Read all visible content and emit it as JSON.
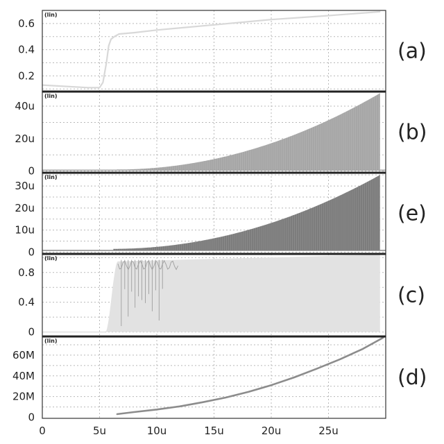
{
  "chart_data": [
    {
      "type": "line",
      "panel_label": "(a)",
      "scale_tag": "(lin)",
      "x": [
        0,
        2,
        4,
        5,
        5.3,
        5.6,
        5.8,
        6.0,
        6.3,
        6.7,
        8,
        10,
        15,
        20,
        25,
        29.5
      ],
      "values": [
        0.13,
        0.12,
        0.11,
        0.11,
        0.15,
        0.3,
        0.43,
        0.48,
        0.5,
        0.52,
        0.53,
        0.55,
        0.59,
        0.63,
        0.66,
        0.69
      ],
      "color": "#d8d8d8",
      "xlim": [
        0,
        30
      ],
      "ylim": [
        0.08,
        0.7
      ],
      "yticks": [
        0.2,
        0.4,
        0.6
      ],
      "ytick_labels": [
        "0.2",
        "0.4",
        "0.6"
      ],
      "grid": true
    },
    {
      "type": "area",
      "panel_label": "(b)",
      "scale_tag": "(lin)",
      "envelope": {
        "start": 6.5,
        "end": 29.5,
        "start_value": 1,
        "end_value": 48,
        "power": 2,
        "offset": 0.6
      },
      "baseline": 0.6,
      "color": "#a6a6a6",
      "xlim": [
        0,
        30
      ],
      "ylim": [
        -1,
        49
      ],
      "yticks": [
        0,
        20,
        40
      ],
      "ytick_labels": [
        "0",
        "20u",
        "40u"
      ],
      "grid": true
    },
    {
      "type": "area",
      "panel_label": "(e)",
      "scale_tag": "(lin)",
      "envelope": {
        "start": 6.2,
        "end": 29.5,
        "start_value": 1.5,
        "end_value": 35,
        "power": 2,
        "offset": 0.8
      },
      "baseline": 0.8,
      "color": "#7c7c7c",
      "xlim": [
        0,
        30
      ],
      "ylim": [
        -0.8,
        36
      ],
      "yticks": [
        0,
        10,
        20,
        30
      ],
      "ytick_labels": [
        "0",
        "10u",
        "20u",
        "30u"
      ],
      "grid": true
    },
    {
      "type": "area",
      "panel_label": "(c)",
      "scale_tag": "(lin)",
      "rise": {
        "start": 5.5,
        "end": 6.6,
        "from": 0.0,
        "to": 0.95
      },
      "top": {
        "start": 6.6,
        "end": 29.5,
        "from": 0.95,
        "to": 1.04
      },
      "transient_end": 12,
      "transient_spikes": [
        6.9,
        7.2,
        7.5,
        7.8,
        8.1,
        8.4,
        8.7,
        9.0,
        9.3,
        9.6,
        9.9,
        10.2,
        10.5
      ],
      "color": "#e2e2e2",
      "spike_color": "#9e9e9e",
      "xlim": [
        0,
        30
      ],
      "ylim": [
        -0.06,
        1.05
      ],
      "yticks": [
        0,
        0.4,
        0.8
      ],
      "ytick_labels": [
        "0",
        "0.4",
        "0.8"
      ],
      "grid": true
    },
    {
      "type": "line",
      "panel_label": "(d)",
      "scale_tag": "(lin)",
      "x": [
        6.5,
        8,
        10,
        12,
        14,
        16,
        18,
        20,
        22,
        24,
        26,
        28,
        29.8
      ],
      "values": [
        3,
        5,
        7.5,
        10.5,
        14.5,
        19,
        24.5,
        31,
        38.5,
        47,
        56,
        66,
        77
      ],
      "color": "#8c8c8c",
      "xlim": [
        0,
        30
      ],
      "ylim": [
        -1,
        78
      ],
      "yticks": [
        0,
        20,
        40,
        60
      ],
      "ytick_labels": [
        "0",
        "20M",
        "40M",
        "60M"
      ],
      "xticks": [
        0,
        5,
        10,
        15,
        20,
        25
      ],
      "xtick_labels": [
        "0",
        "5u",
        "10u",
        "15u",
        "20u",
        "25u"
      ],
      "grid": true
    }
  ]
}
